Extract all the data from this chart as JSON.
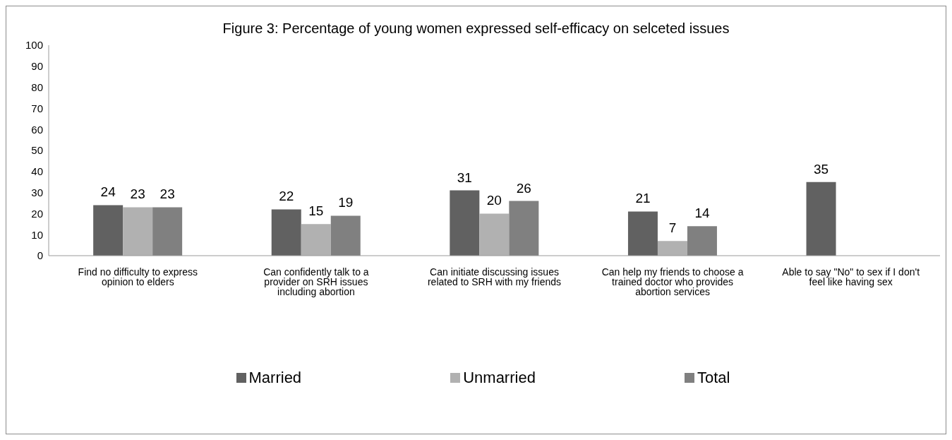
{
  "chart_data": {
    "type": "bar",
    "title": "Figure 3: Percentage of young women expressed self-efficacy on selceted issues",
    "categories": [
      "Find no difficulty to express opinion to elders",
      "Can confidently talk to a provider on SRH issues including abortion",
      "Can initiate discussing issues related to SRH with my friends",
      "Can help my friends to choose a trained doctor who provides abortion services",
      "Able to say \"No\" to sex if I don't feel like having sex"
    ],
    "series": [
      {
        "name": "Married",
        "color": "#616161",
        "values": [
          24,
          22,
          31,
          21,
          35
        ]
      },
      {
        "name": "Unmarried",
        "color": "#b1b1b1",
        "values": [
          23,
          15,
          20,
          7,
          null
        ]
      },
      {
        "name": "Total",
        "color": "#808080",
        "values": [
          23,
          19,
          26,
          14,
          null
        ]
      }
    ],
    "ylim": [
      0,
      100
    ],
    "yticks": [
      0,
      10,
      20,
      30,
      40,
      50,
      60,
      70,
      80,
      90,
      100
    ],
    "grid": false,
    "legend": "bottom",
    "data_labels": true
  }
}
